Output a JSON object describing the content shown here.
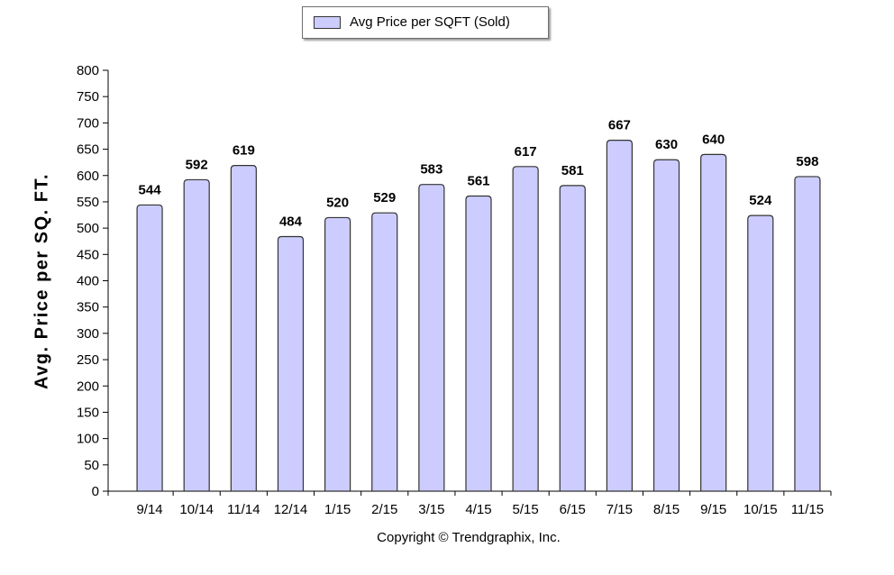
{
  "legend": {
    "label": "Avg Price per SQFT (Sold)"
  },
  "copyright": "Copyright © Trendgraphix, Inc.",
  "chart_data": {
    "type": "bar",
    "categories": [
      "9/14",
      "10/14",
      "11/14",
      "12/14",
      "1/15",
      "2/15",
      "3/15",
      "4/15",
      "5/15",
      "6/15",
      "7/15",
      "8/15",
      "9/15",
      "10/15",
      "11/15"
    ],
    "series": [
      {
        "name": "Avg Price per SQFT (Sold)",
        "values": [
          544,
          592,
          619,
          484,
          520,
          529,
          583,
          561,
          617,
          581,
          667,
          630,
          640,
          524,
          598
        ]
      }
    ],
    "xlabel": "",
    "ylabel": "Avg. Price per SQ. FT.",
    "ylim": [
      0,
      800
    ],
    "yticks": [
      0,
      50,
      100,
      150,
      200,
      250,
      300,
      350,
      400,
      450,
      500,
      550,
      600,
      650,
      700,
      750,
      800
    ],
    "data_labels": true,
    "grid": false,
    "legend_position": "top-center",
    "colors": {
      "bar_fill": "#ccccff",
      "bar_stroke": "#333333"
    }
  }
}
